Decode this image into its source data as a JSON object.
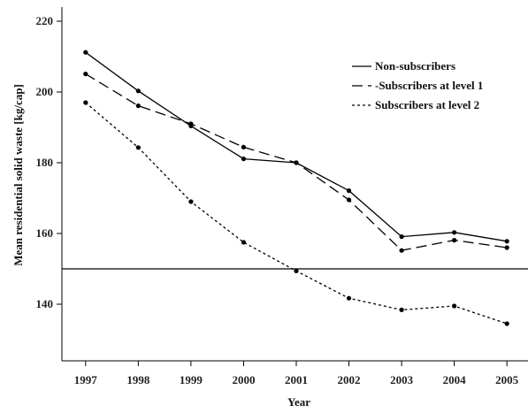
{
  "chart_data": {
    "type": "line",
    "title": "",
    "xlabel": "Year",
    "ylabel": "Mean residential solid waste [kg/cap]",
    "x": [
      1997,
      1998,
      1999,
      2000,
      2001,
      2002,
      2003,
      2004,
      2005
    ],
    "x_tick_labels": [
      "1997",
      "1998",
      "1999",
      "2000",
      "2001",
      "2002",
      "2003",
      "2004",
      "2005"
    ],
    "y_ticks": [
      140,
      160,
      180,
      200,
      220
    ],
    "y_tick_labels": [
      "140",
      "160",
      "180",
      "200",
      "220"
    ],
    "xlim": [
      1996.55,
      2005.4
    ],
    "ylim": [
      124,
      224
    ],
    "grid": false,
    "legend_position": "top-right",
    "reference_line": {
      "y": 150
    },
    "series": [
      {
        "name": "Non-subscribers",
        "style": "solid",
        "color": "#000000",
        "values": [
          211.2,
          200.3,
          190.4,
          181.1,
          180.0,
          172.1,
          159.1,
          160.3,
          157.8
        ]
      },
      {
        "name": "-Subscribers at level 1",
        "style": "dashed",
        "color": "#000000",
        "values": [
          205.1,
          196.1,
          191.0,
          184.4,
          180.0,
          169.5,
          155.2,
          158.1,
          156.0
        ]
      },
      {
        "name": "Subscribers at level 2",
        "style": "dotted",
        "color": "#000000",
        "values": [
          197.0,
          184.3,
          169.0,
          157.5,
          149.4,
          141.7,
          138.4,
          139.5,
          134.5
        ]
      }
    ]
  }
}
